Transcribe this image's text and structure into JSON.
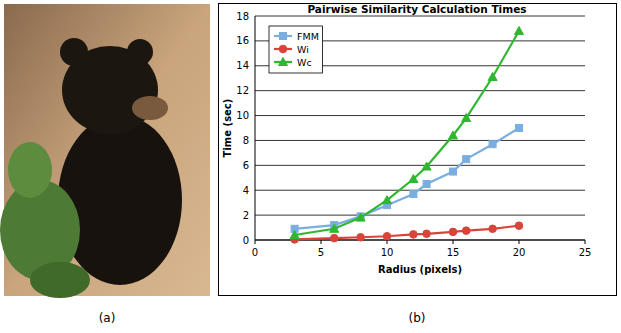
{
  "panel_labels": [
    "(a)",
    "(b)"
  ],
  "chart_data": {
    "type": "line",
    "title": "Pairwise Similarity Calculation Times",
    "x_label": "Radius (pixels)",
    "y_label": "Time (sec)",
    "x": [
      3,
      6,
      8,
      10,
      12,
      13,
      15,
      16,
      18,
      20
    ],
    "series": [
      {
        "name": "FMM",
        "color": "#7aaee0",
        "marker": "square",
        "values": [
          0.9,
          1.2,
          1.9,
          2.8,
          3.7,
          4.5,
          5.5,
          6.5,
          7.7,
          9.0
        ]
      },
      {
        "name": "Wi",
        "color": "#d9443a",
        "marker": "circle",
        "values": [
          0.05,
          0.15,
          0.22,
          0.3,
          0.45,
          0.5,
          0.65,
          0.75,
          0.9,
          1.15
        ]
      },
      {
        "name": "Wc",
        "color": "#2fb82f",
        "marker": "triangle",
        "values": [
          0.4,
          0.9,
          1.8,
          3.2,
          4.9,
          5.9,
          8.4,
          9.8,
          13.1,
          16.8
        ]
      }
    ],
    "xlim": [
      0,
      25
    ],
    "xticks": [
      0,
      5,
      10,
      15,
      20,
      25
    ],
    "ylim": [
      0,
      18
    ],
    "yticks": [
      0,
      2,
      4,
      6,
      8,
      10,
      12,
      14,
      16,
      18
    ],
    "grid": true,
    "legend": "upper-left"
  }
}
